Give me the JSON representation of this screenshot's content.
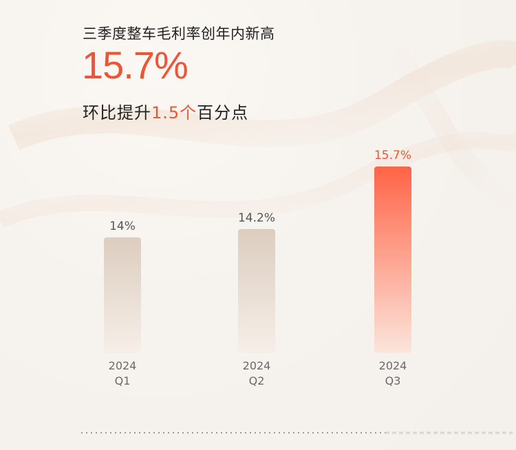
{
  "header": {
    "subtitle": "三季度整车毛利率创年内新高",
    "headline": "15.7%",
    "compare_prefix": "环比提升",
    "compare_value": "1.5个",
    "compare_suffix": "百分点"
  },
  "colors": {
    "accent": "#ee5535",
    "bar_neutral_top": "#dccdbf",
    "bar_neutral_bottom": "#f6efe8",
    "bar_accent_top": "#ff6447",
    "bar_accent_bottom": "#fbe5dc",
    "label_neutral": "#555555"
  },
  "chart_data": {
    "type": "bar",
    "categories": [
      "2024\nQ1",
      "2024\nQ2",
      "2024\nQ3"
    ],
    "category_lines": [
      [
        "2024",
        "Q1"
      ],
      [
        "2024",
        "Q2"
      ],
      [
        "2024",
        "Q3"
      ]
    ],
    "values": [
      14.0,
      14.2,
      15.7
    ],
    "data_labels": [
      "14%",
      "14.2%",
      "15.7%"
    ],
    "highlight_index": 2,
    "title": "三季度整车毛利率创年内新高",
    "xlabel": "",
    "ylabel": "",
    "grid": false,
    "legend": "none"
  }
}
